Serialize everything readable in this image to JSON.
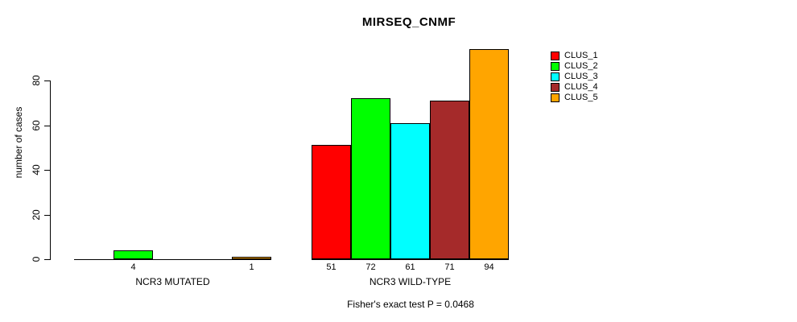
{
  "chart_data": {
    "type": "bar",
    "title": "MIRSEQ_CNMF",
    "ylabel": "number of cases",
    "xlabel": "",
    "annotation": "Fisher's exact test P = 0.0468",
    "categories": [
      "NCR3 MUTATED",
      "NCR3 WILD-TYPE"
    ],
    "series": [
      {
        "name": "CLUS_1",
        "color": "#FF0000",
        "values": [
          0,
          51
        ]
      },
      {
        "name": "CLUS_2",
        "color": "#00FF00",
        "values": [
          4,
          72
        ]
      },
      {
        "name": "CLUS_3",
        "color": "#00FFFF",
        "values": [
          0,
          61
        ]
      },
      {
        "name": "CLUS_4",
        "color": "#A52A2A",
        "values": [
          0,
          71
        ]
      },
      {
        "name": "CLUS_5",
        "color": "#FFA500",
        "values": [
          1,
          94
        ]
      }
    ],
    "yticks": [
      0,
      20,
      40,
      60,
      80
    ],
    "ylim": [
      0,
      94
    ],
    "grid": false,
    "legend_position": "right",
    "bar_value_labels": "shown below baseline for non-zero bars",
    "axis_color": "#000000",
    "background_color": "#FFFFFF"
  }
}
